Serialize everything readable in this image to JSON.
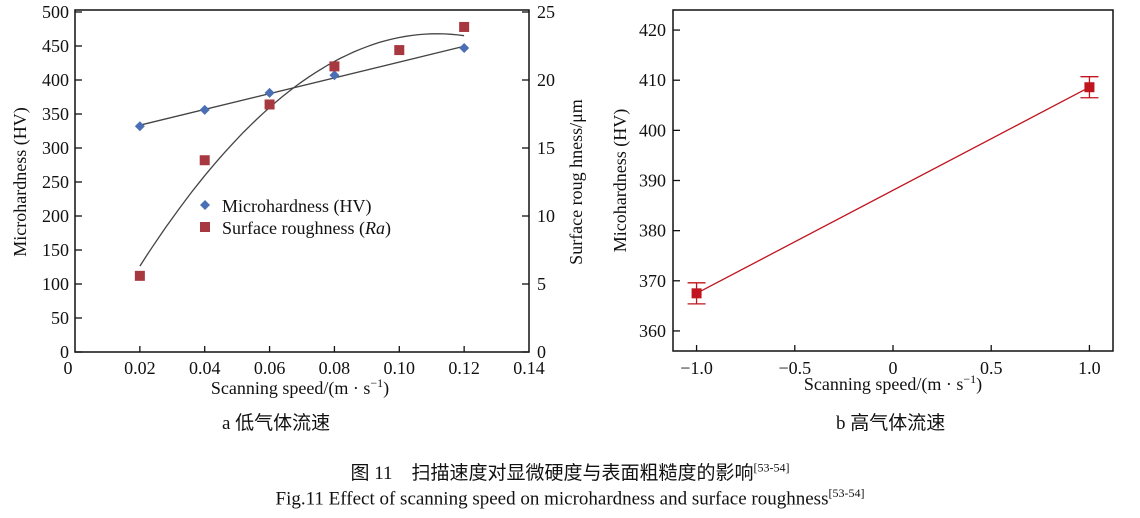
{
  "chart_data": [
    {
      "type": "scatter",
      "panel_label": "a 低气体流速",
      "xlabel": "Scanning speed/(m · s",
      "xlabel_sup": "−1",
      "xlabel_end": ")",
      "ylabel": "Microhardness (HV)",
      "y2label": "Surface roug hness/μm",
      "xlim": [
        0,
        0.14
      ],
      "ylim": [
        0,
        500
      ],
      "y2lim": [
        0,
        25
      ],
      "xticks": [
        "0",
        "0.02",
        "0.04",
        "0.06",
        "0.08",
        "0.10",
        "0.12",
        "0.14"
      ],
      "yticks": [
        "0",
        "50",
        "100",
        "150",
        "200",
        "250",
        "300",
        "350",
        "400",
        "450",
        "500"
      ],
      "y2ticks": [
        "0",
        "5",
        "10",
        "15",
        "20",
        "25"
      ],
      "grid": false,
      "legend_position": "center",
      "series": [
        {
          "name": "Microhardness (HV)",
          "axis": "left",
          "marker": "diamond",
          "color": "#4a6fb5",
          "x": [
            0.02,
            0.04,
            0.06,
            0.08,
            0.12
          ],
          "y": [
            332,
            356,
            381,
            407,
            447
          ],
          "trendline": "linear"
        },
        {
          "name": "Surface roughness (",
          "name_italic": "Ra",
          "name_end": ")",
          "axis": "right",
          "marker": "square",
          "color": "#a8383f",
          "x": [
            0.02,
            0.04,
            0.06,
            0.08,
            0.1,
            0.12
          ],
          "y": [
            5.6,
            14.1,
            18.2,
            21.0,
            22.2,
            23.9
          ],
          "trendline": "polynomial"
        }
      ]
    },
    {
      "type": "line",
      "panel_label": "b 高气体流速",
      "xlabel": "Scanning speed/(m · s",
      "xlabel_sup": "−1",
      "xlabel_end": ")",
      "ylabel": "Micohardness (HV)",
      "xlim": [
        -1.12,
        1.12
      ],
      "ylim": [
        356,
        424
      ],
      "xticks": [
        "−1.0",
        "−0.5",
        "0",
        "0.5",
        "1.0"
      ],
      "xtick_values": [
        -1,
        -0.5,
        0,
        0.5,
        1
      ],
      "yticks": [
        "360",
        "370",
        "380",
        "390",
        "400",
        "410",
        "420"
      ],
      "grid": false,
      "color": "#c0141e",
      "series": [
        {
          "marker": "square",
          "x": [
            -1.0,
            1.0
          ],
          "y": [
            367.5,
            408.6
          ],
          "error": [
            2.1,
            2.1
          ]
        }
      ]
    }
  ],
  "caption_cn": "图 11　扫描速度对显微硬度与表面粗糙度的影响",
  "caption_en": "Fig.11 Effect of scanning speed on microhardness and surface roughness",
  "caption_ref": "[53-54]"
}
